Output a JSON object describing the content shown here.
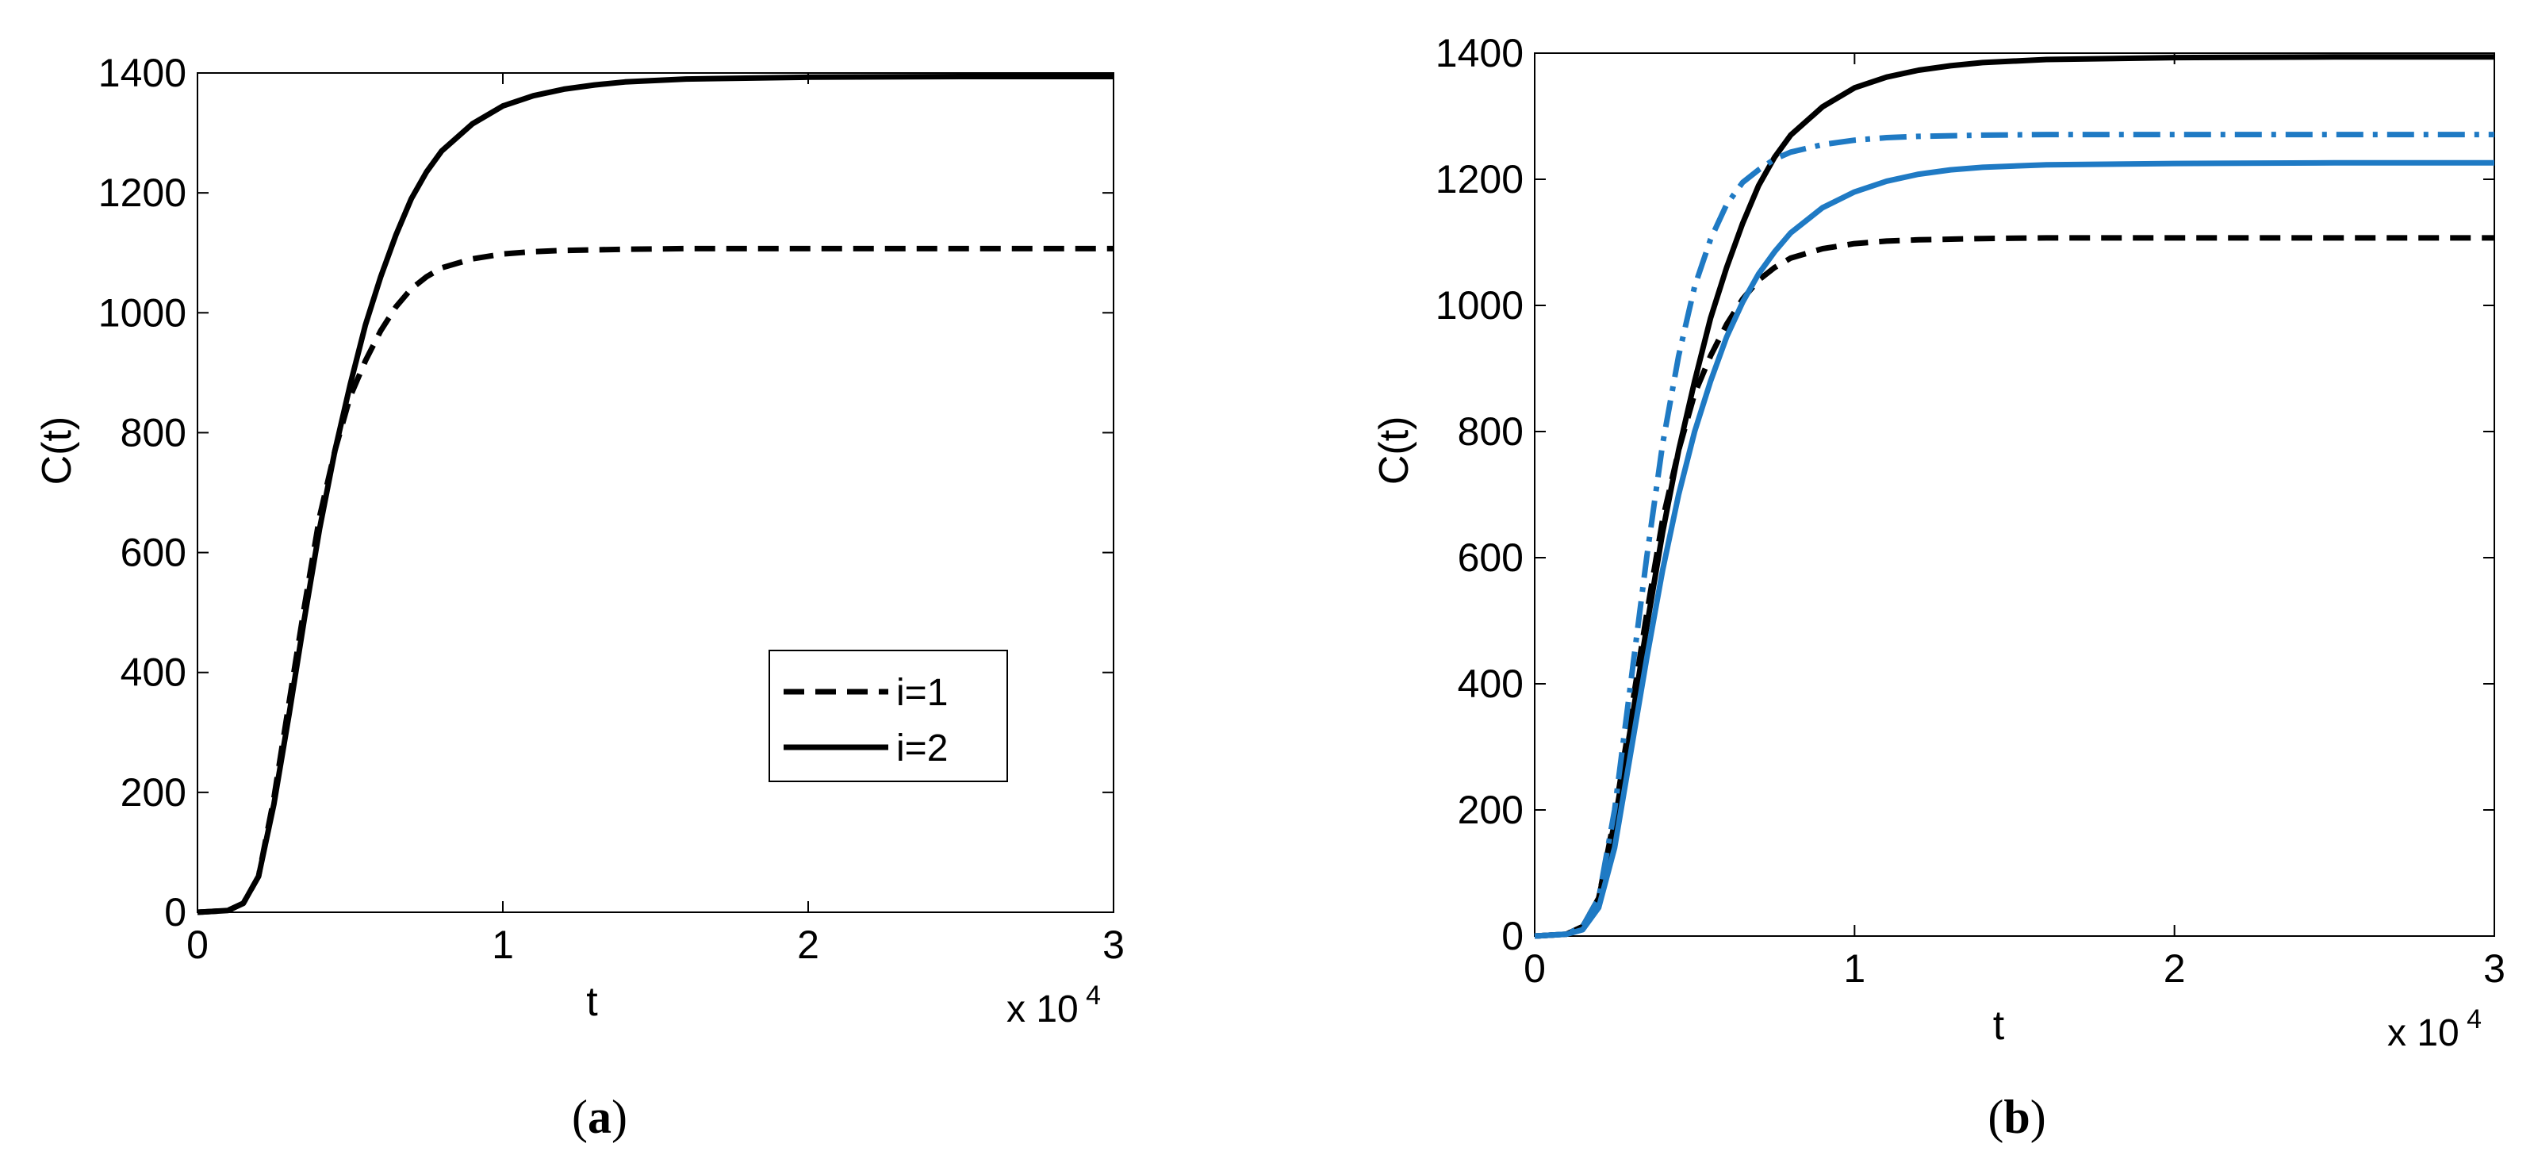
{
  "chart_data": [
    {
      "panel": "(a)",
      "type": "line",
      "xlabel": "t",
      "ylabel": "C(t)",
      "x_multiplier": "x 10",
      "x_multiplier_exp": "4",
      "xlim": [
        0,
        30000
      ],
      "ylim": [
        0,
        1400
      ],
      "xticks": [
        0,
        10000,
        20000,
        30000
      ],
      "xtick_labels": [
        "0",
        "1",
        "2",
        "3"
      ],
      "yticks": [
        0,
        200,
        400,
        600,
        800,
        1000,
        1200,
        1400
      ],
      "ytick_labels": [
        "0",
        "200",
        "400",
        "600",
        "800",
        "1000",
        "1200",
        "1400"
      ],
      "grid": false,
      "legend_position": "lower-right",
      "series": [
        {
          "name": "i=1",
          "color": "#000000",
          "style": "dashed",
          "x": [
            0,
            1000,
            1500,
            2000,
            2500,
            3000,
            3500,
            4000,
            4500,
            5000,
            5500,
            6000,
            6500,
            7000,
            7500,
            8000,
            9000,
            10000,
            11000,
            12000,
            14000,
            16000,
            20000,
            25000,
            30000
          ],
          "y": [
            0,
            3,
            15,
            60,
            190,
            350,
            510,
            660,
            770,
            860,
            920,
            970,
            1010,
            1040,
            1060,
            1075,
            1090,
            1098,
            1102,
            1104,
            1106,
            1107,
            1107,
            1107,
            1107
          ]
        },
        {
          "name": "i=2",
          "color": "#000000",
          "style": "solid",
          "x": [
            0,
            1000,
            1500,
            2000,
            2500,
            3000,
            3500,
            4000,
            4500,
            5000,
            5500,
            6000,
            6500,
            7000,
            7500,
            8000,
            9000,
            10000,
            11000,
            12000,
            13000,
            14000,
            16000,
            20000,
            25000,
            30000
          ],
          "y": [
            0,
            3,
            15,
            60,
            180,
            330,
            490,
            640,
            770,
            880,
            980,
            1060,
            1130,
            1190,
            1235,
            1270,
            1315,
            1345,
            1362,
            1373,
            1380,
            1385,
            1390,
            1393,
            1394,
            1394
          ]
        }
      ]
    },
    {
      "panel": "(b)",
      "type": "line",
      "xlabel": "t",
      "ylabel": "C(t)",
      "x_multiplier": "x 10",
      "x_multiplier_exp": "4",
      "xlim": [
        0,
        30000
      ],
      "ylim": [
        0,
        1400
      ],
      "xticks": [
        0,
        10000,
        20000,
        30000
      ],
      "xtick_labels": [
        "0",
        "1",
        "2",
        "3"
      ],
      "yticks": [
        0,
        200,
        400,
        600,
        800,
        1000,
        1200,
        1400
      ],
      "ytick_labels": [
        "0",
        "200",
        "400",
        "600",
        "800",
        "1000",
        "1200",
        "1400"
      ],
      "grid": false,
      "series": [
        {
          "color": "#000000",
          "style": "dashed",
          "x": [
            0,
            1000,
            1500,
            2000,
            2500,
            3000,
            3500,
            4000,
            4500,
            5000,
            5500,
            6000,
            6500,
            7000,
            7500,
            8000,
            9000,
            10000,
            11000,
            12000,
            14000,
            16000,
            20000,
            25000,
            30000
          ],
          "y": [
            0,
            3,
            15,
            60,
            190,
            350,
            510,
            660,
            770,
            860,
            920,
            970,
            1010,
            1040,
            1060,
            1075,
            1090,
            1098,
            1102,
            1104,
            1106,
            1107,
            1107,
            1107,
            1107
          ]
        },
        {
          "color": "#000000",
          "style": "solid",
          "x": [
            0,
            1000,
            1500,
            2000,
            2500,
            3000,
            3500,
            4000,
            4500,
            5000,
            5500,
            6000,
            6500,
            7000,
            7500,
            8000,
            9000,
            10000,
            11000,
            12000,
            13000,
            14000,
            16000,
            20000,
            25000,
            30000
          ],
          "y": [
            0,
            3,
            15,
            60,
            180,
            330,
            490,
            640,
            770,
            880,
            980,
            1060,
            1130,
            1190,
            1235,
            1270,
            1315,
            1345,
            1362,
            1373,
            1380,
            1385,
            1390,
            1393,
            1394,
            1394
          ]
        },
        {
          "color": "#1f7ac4",
          "style": "dashdot",
          "x": [
            0,
            1000,
            1500,
            2000,
            2500,
            3000,
            3500,
            4000,
            4500,
            5000,
            5500,
            6000,
            6500,
            7000,
            7500,
            8000,
            9000,
            10000,
            11000,
            12000,
            14000,
            16000,
            20000,
            25000,
            30000
          ],
          "y": [
            0,
            3,
            15,
            60,
            200,
            400,
            600,
            780,
            920,
            1030,
            1105,
            1160,
            1195,
            1215,
            1232,
            1243,
            1255,
            1262,
            1266,
            1268,
            1270,
            1271,
            1271,
            1271,
            1271
          ]
        },
        {
          "color": "#1f7ac4",
          "style": "solid",
          "x": [
            0,
            1000,
            1500,
            2000,
            2500,
            3000,
            3500,
            4000,
            4500,
            5000,
            5500,
            6000,
            6500,
            7000,
            7500,
            8000,
            9000,
            10000,
            11000,
            12000,
            13000,
            14000,
            16000,
            20000,
            25000,
            30000
          ],
          "y": [
            0,
            3,
            10,
            45,
            140,
            290,
            440,
            580,
            700,
            800,
            880,
            950,
            1005,
            1050,
            1085,
            1115,
            1155,
            1180,
            1197,
            1208,
            1215,
            1219,
            1223,
            1225,
            1226,
            1226
          ]
        }
      ]
    }
  ]
}
